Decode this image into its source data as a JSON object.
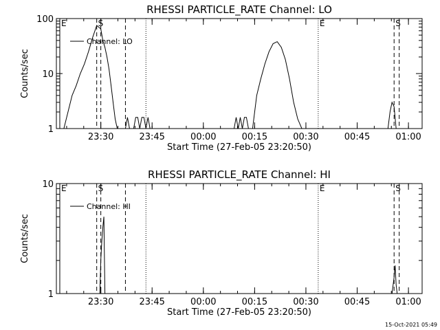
{
  "footer": {
    "timestamp": "15-Oct-2021 05:49"
  },
  "chart_data": [
    {
      "type": "line",
      "title": "RHESSI PARTICLE_RATE Channel: LO",
      "xlabel": "Start Time (27-Feb-05 23:20:50)",
      "ylabel": "Counts/sec",
      "yscale": "log",
      "ylim": [
        1,
        100
      ],
      "y_ticks": [
        {
          "v": 1,
          "label": "1"
        },
        {
          "v": 10,
          "label": "10"
        },
        {
          "v": 100,
          "label": "100"
        }
      ],
      "xlim": [
        23.2833,
        25.0667
      ],
      "x_ticks": [
        {
          "v": 23.5,
          "label": "23:30"
        },
        {
          "v": 23.75,
          "label": "23:45"
        },
        {
          "v": 24.0,
          "label": "00:00"
        },
        {
          "v": 24.25,
          "label": "00:15"
        },
        {
          "v": 24.5,
          "label": "00:30"
        },
        {
          "v": 24.75,
          "label": "00:45"
        },
        {
          "v": 25.0,
          "label": "01:00"
        }
      ],
      "legend": "top-left",
      "series": [
        {
          "name": "Channel: LO",
          "x": [
            23.32,
            23.34,
            23.36,
            23.38,
            23.4,
            23.42,
            23.44,
            23.46,
            23.48,
            23.5,
            23.51,
            23.52,
            23.53,
            23.54,
            23.55,
            23.56,
            23.57,
            23.58,
            23.6,
            23.62,
            23.63,
            23.64,
            23.65,
            23.66,
            23.67,
            23.68,
            23.69,
            23.7,
            23.71,
            23.72,
            23.73,
            23.74,
            23.75,
            23.76,
            23.77,
            23.78,
            23.79,
            24.15,
            24.16,
            24.17,
            24.18,
            24.19,
            24.2,
            24.21,
            24.22,
            24.24,
            24.25,
            24.26,
            24.28,
            24.3,
            24.32,
            24.34,
            24.36,
            24.38,
            24.4,
            24.42,
            24.44,
            24.46,
            24.48,
            24.49,
            24.9,
            24.91,
            24.92,
            24.93,
            24.94
          ],
          "y": [
            1,
            2,
            4,
            6,
            10,
            15,
            25,
            45,
            75,
            65,
            40,
            30,
            20,
            12,
            6,
            3,
            1.5,
            1,
            1,
            1,
            1.6,
            1,
            1,
            1,
            1.6,
            1.6,
            1,
            1.6,
            1.6,
            1,
            1.6,
            1,
            1,
            1,
            1,
            1,
            1,
            1,
            1.6,
            1,
            1.6,
            1,
            1.6,
            1.6,
            1,
            1,
            2,
            4,
            8,
            15,
            25,
            35,
            38,
            30,
            18,
            8,
            3,
            1.5,
            1,
            1,
            1,
            2,
            3,
            2.5,
            1
          ]
        }
      ],
      "markers": [
        {
          "label": "E",
          "x": 23.3,
          "style": "solid"
        },
        {
          "label": "S",
          "x": 23.48,
          "style": "dashed"
        },
        {
          "label": "",
          "x": 23.5,
          "style": "dashed"
        },
        {
          "label": "",
          "x": 23.62,
          "style": "dashed"
        },
        {
          "label": "",
          "x": 23.72,
          "style": "dotted"
        },
        {
          "label": "E",
          "x": 24.56,
          "style": "dotted"
        },
        {
          "label": "S",
          "x": 24.93,
          "style": "dashed"
        },
        {
          "label": "",
          "x": 24.955,
          "style": "dashed"
        }
      ]
    },
    {
      "type": "line",
      "title": "RHESSI PARTICLE_RATE Channel: HI",
      "xlabel": "Start Time (27-Feb-05 23:20:50)",
      "ylabel": "Counts/sec",
      "yscale": "log",
      "ylim": [
        1,
        10
      ],
      "y_ticks": [
        {
          "v": 1,
          "label": "1"
        },
        {
          "v": 10,
          "label": "10"
        }
      ],
      "xlim": [
        23.2833,
        25.0667
      ],
      "x_ticks": [
        {
          "v": 23.5,
          "label": "23:30"
        },
        {
          "v": 23.75,
          "label": "23:45"
        },
        {
          "v": 24.0,
          "label": "00:00"
        },
        {
          "v": 24.25,
          "label": "00:15"
        },
        {
          "v": 24.5,
          "label": "00:30"
        },
        {
          "v": 24.75,
          "label": "00:45"
        },
        {
          "v": 25.0,
          "label": "01:00"
        }
      ],
      "legend": "top-left",
      "series": [
        {
          "name": "Channel: HI",
          "x": [
            23.495,
            23.5,
            23.505,
            23.51,
            23.515,
            23.52,
            24.92,
            24.93,
            24.935,
            24.94,
            24.945
          ],
          "y": [
            1,
            2,
            3,
            4,
            5,
            1,
            1,
            1.4,
            1.8,
            1.2,
            1
          ]
        }
      ],
      "markers": [
        {
          "label": "E",
          "x": 23.3,
          "style": "solid"
        },
        {
          "label": "S",
          "x": 23.48,
          "style": "dashed"
        },
        {
          "label": "",
          "x": 23.5,
          "style": "dashed"
        },
        {
          "label": "",
          "x": 23.62,
          "style": "dashed"
        },
        {
          "label": "",
          "x": 23.72,
          "style": "dotted"
        },
        {
          "label": "E",
          "x": 24.56,
          "style": "dotted"
        },
        {
          "label": "S",
          "x": 24.93,
          "style": "dashed"
        },
        {
          "label": "",
          "x": 24.955,
          "style": "dashed"
        }
      ]
    }
  ]
}
